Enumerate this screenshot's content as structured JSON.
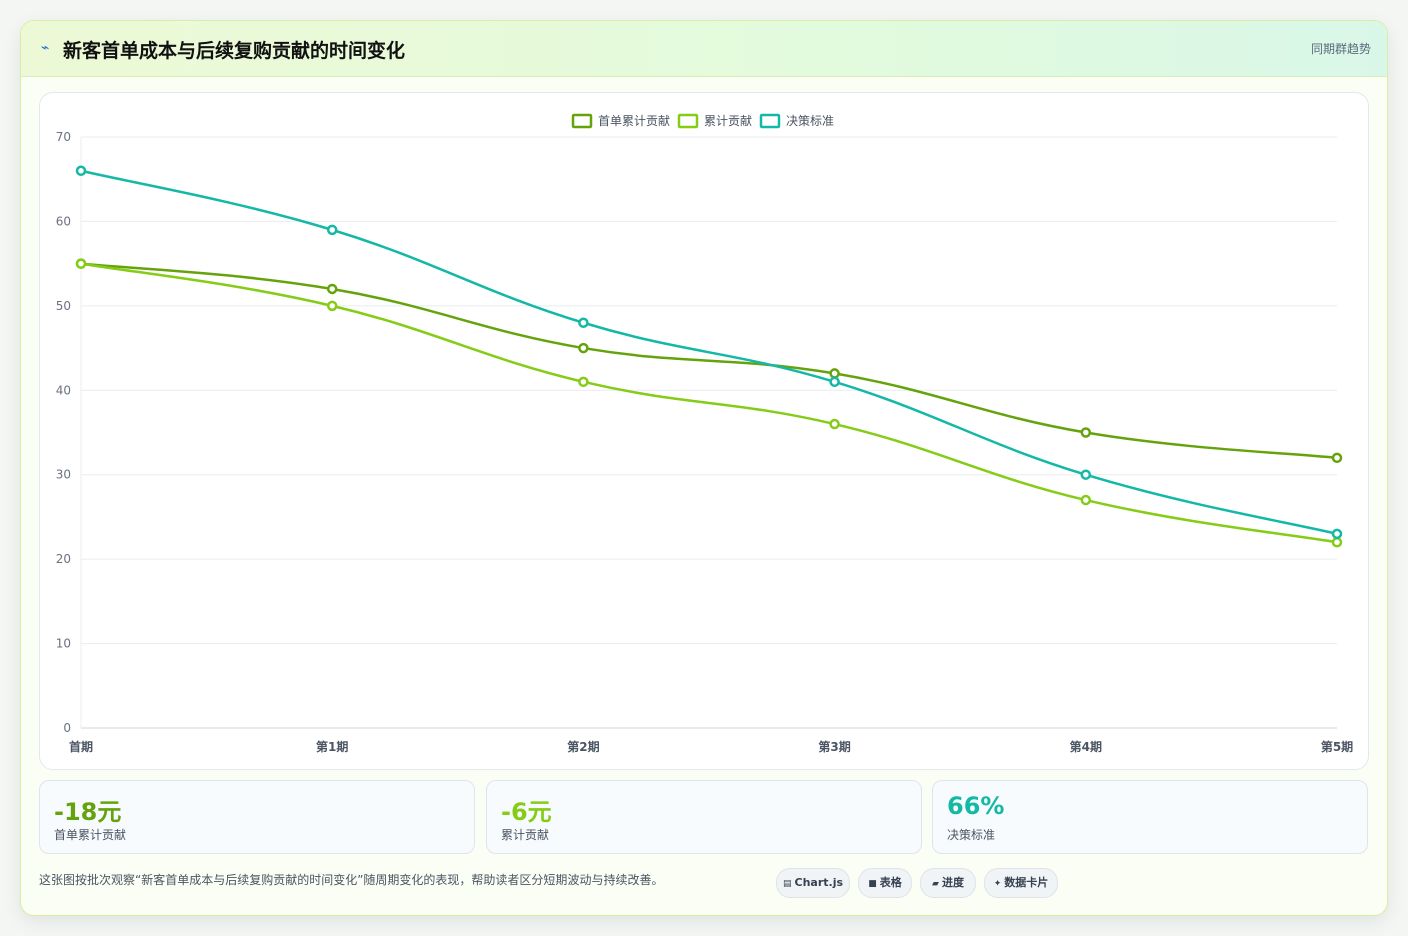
{
  "header": {
    "title_icon": "⌁",
    "title": "新客首单成本与后续复购贡献的时间变化",
    "tag": "同期群趋势"
  },
  "chart_data": {
    "type": "line",
    "x": [
      "首期",
      "第1期",
      "第2期",
      "第3期",
      "第4期",
      "第5期"
    ],
    "series": [
      {
        "name": "首单累计贡献",
        "values": [
          55,
          52,
          45,
          42,
          35,
          32
        ],
        "color": "#65a30d"
      },
      {
        "name": "累计贡献",
        "values": [
          55,
          50,
          41,
          36,
          27,
          22
        ],
        "color": "#84cc16"
      },
      {
        "name": "决策标准",
        "values": [
          66,
          59,
          48,
          41,
          30,
          23
        ],
        "color": "#14b8a6"
      }
    ],
    "ylim": [
      0,
      70
    ],
    "yticks": [
      0,
      10,
      20,
      30,
      40,
      50,
      60,
      70
    ],
    "grid": true,
    "legend": "top-center"
  },
  "stats": [
    {
      "value": "-18元",
      "label": "首单累计贡献",
      "color": "#65a30d"
    },
    {
      "value": "-6元",
      "label": "累计贡献",
      "color": "#84cc16"
    },
    {
      "value": "66%",
      "label": "决策标准",
      "color": "#14b8a6"
    }
  ],
  "footer": {
    "description": "这张图按批次观察“新客首单成本与后续复购贡献的时间变化”随周期变化的表现，帮助读者区分短期波动与持续改善。",
    "pills": [
      {
        "icon": "▤",
        "label": "Chart.js"
      },
      {
        "icon": "■",
        "label": "表格"
      },
      {
        "icon": "▰",
        "label": "进度"
      },
      {
        "icon": "✦",
        "label": "数据卡片"
      }
    ]
  }
}
